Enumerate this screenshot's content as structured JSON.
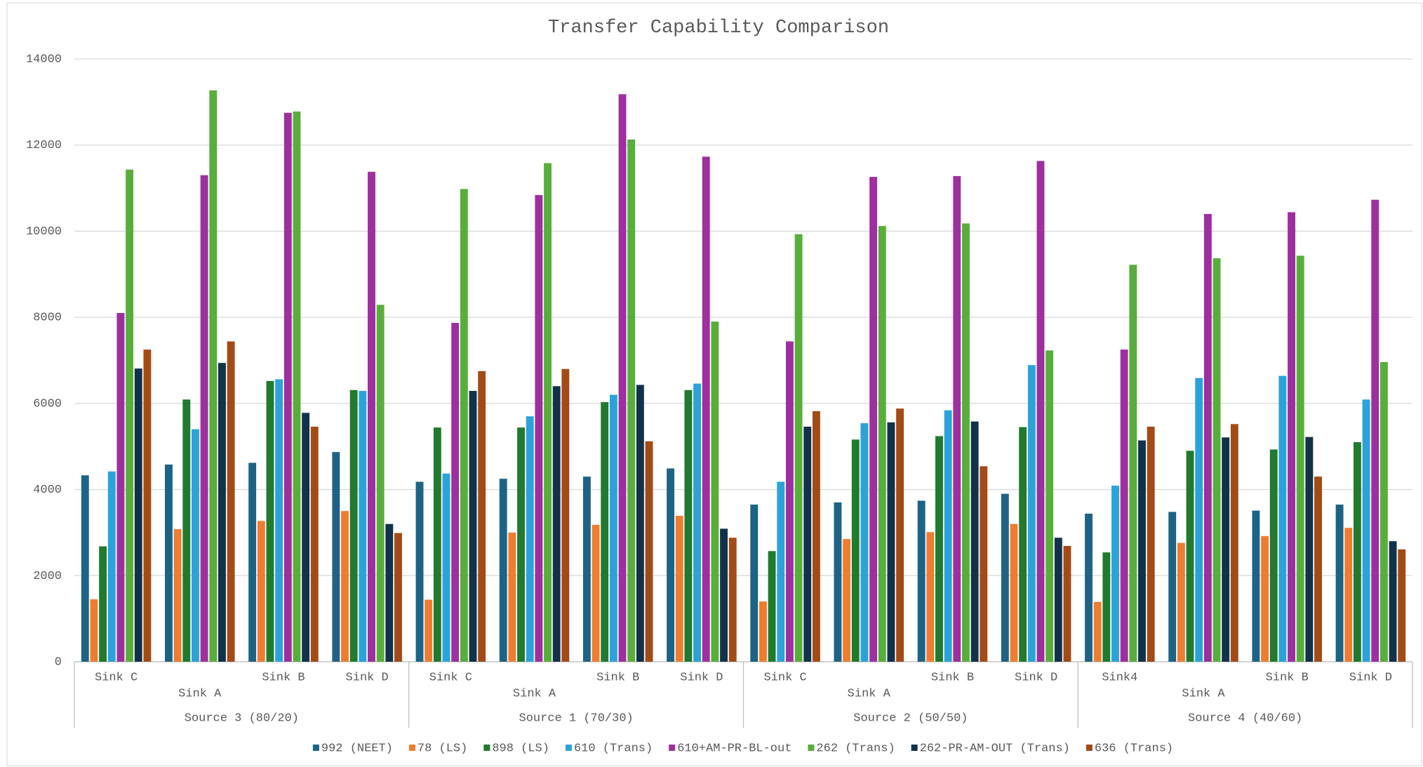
{
  "chart_data": {
    "type": "bar",
    "title": "Transfer Capability Comparison",
    "categories": [
      "Sink C",
      "Sink A",
      "Sink B",
      "Sink D",
      "Sink C",
      "Sink A",
      "Sink B",
      "Sink D",
      "Sink C",
      "Sink A",
      "Sink B",
      "Sink D",
      "Sink4",
      "Sink A",
      "Sink B",
      "Sink D"
    ],
    "category_groups": [
      "Source 3 (80/20)",
      "Source 1 (70/30)",
      "Source 2 (50/50)",
      "Source 4 (40/60)"
    ],
    "series": [
      {
        "name": "992 (NEET)",
        "color": "#1d6385",
        "values": [
          4330,
          4580,
          4620,
          4870,
          4180,
          4250,
          4300,
          4490,
          3650,
          3700,
          3740,
          3900,
          3440,
          3480,
          3510,
          3650
        ]
      },
      {
        "name": "78 (LS)",
        "color": "#ee7d31",
        "values": [
          1450,
          3080,
          3270,
          3500,
          1440,
          3000,
          3180,
          3390,
          1400,
          2850,
          3010,
          3200,
          1390,
          2760,
          2920,
          3110
        ]
      },
      {
        "name": "898 (LS)",
        "color": "#217a2e",
        "values": [
          2680,
          6090,
          6520,
          6310,
          5440,
          5440,
          6030,
          6310,
          2570,
          5160,
          5240,
          5450,
          2540,
          4900,
          4930,
          5100
        ]
      },
      {
        "name": "610 (Trans)",
        "color": "#2ba3da",
        "values": [
          4420,
          5400,
          6560,
          6290,
          4370,
          5700,
          6200,
          6460,
          4180,
          5540,
          5840,
          6890,
          4090,
          6590,
          6640,
          6090
        ]
      },
      {
        "name": "610+AM-PR-BL-out",
        "color": "#9e2f9f",
        "values": [
          8100,
          11300,
          12750,
          11380,
          7870,
          10840,
          13180,
          11730,
          7440,
          11260,
          11280,
          11630,
          7250,
          10400,
          10440,
          10730
        ]
      },
      {
        "name": "262 (Trans)",
        "color": "#58ae3b",
        "values": [
          11430,
          13270,
          12780,
          8290,
          10980,
          11580,
          12130,
          7900,
          9930,
          10120,
          10180,
          7230,
          9220,
          9370,
          9430,
          6960
        ]
      },
      {
        "name": "262-PR-AM-OUT (Trans)",
        "color": "#11324a",
        "values": [
          6810,
          6940,
          5780,
          3200,
          6290,
          6400,
          6430,
          3090,
          5460,
          5560,
          5580,
          2880,
          5140,
          5210,
          5220,
          2800
        ]
      },
      {
        "name": "636 (Trans)",
        "color": "#a34b17",
        "values": [
          7250,
          7440,
          5460,
          2990,
          6750,
          6800,
          5120,
          2880,
          5820,
          5880,
          4540,
          2690,
          5460,
          5520,
          4300,
          2610
        ]
      }
    ],
    "ylim": [
      0,
      14000
    ],
    "yticks": [
      0,
      2000,
      4000,
      6000,
      8000,
      10000,
      12000,
      14000
    ],
    "grid": true,
    "legend": "bottom"
  }
}
